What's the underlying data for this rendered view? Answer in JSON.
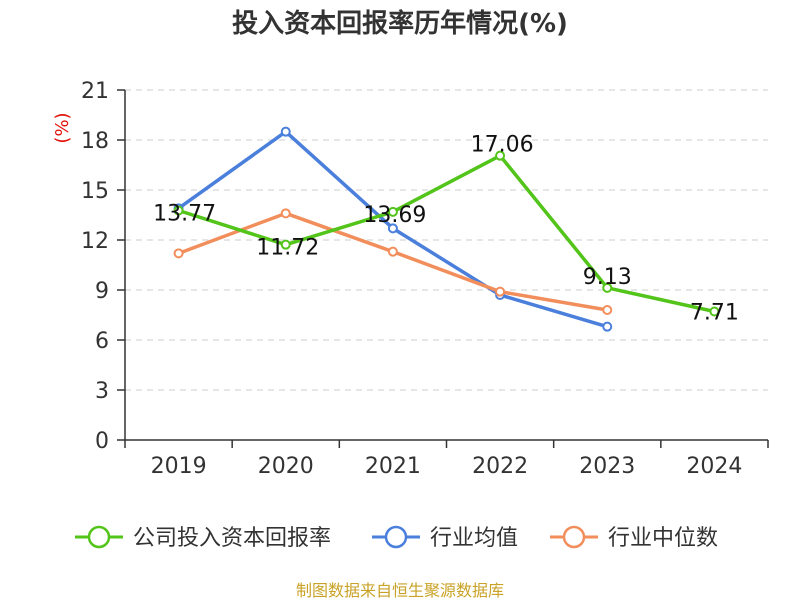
{
  "chart_data": {
    "type": "line",
    "title": "投入资本回报率历年情况(%)",
    "ylabel": "(%)",
    "categories": [
      "2019",
      "2020",
      "2021",
      "2022",
      "2023",
      "2024"
    ],
    "ylim": [
      0,
      21
    ],
    "yticks": [
      0,
      3,
      6,
      9,
      12,
      15,
      18,
      21
    ],
    "grid": true,
    "legend_position": "bottom",
    "series": [
      {
        "name": "公司投入资本回报率",
        "color": "#52c41a",
        "values": [
          13.77,
          11.72,
          13.69,
          17.06,
          9.13,
          7.71
        ],
        "data_labels": [
          "13.77",
          "11.72",
          "13.69",
          "17.06",
          "9.13",
          "7.71"
        ]
      },
      {
        "name": "行业均值",
        "color": "#4a7fdb",
        "values": [
          13.9,
          18.5,
          12.7,
          8.7,
          6.8,
          null
        ]
      },
      {
        "name": "行业中位数",
        "color": "#f28e5b",
        "values": [
          11.2,
          13.6,
          11.3,
          8.9,
          7.8,
          null
        ]
      }
    ]
  },
  "footer": "制图数据来自恒生聚源数据库"
}
